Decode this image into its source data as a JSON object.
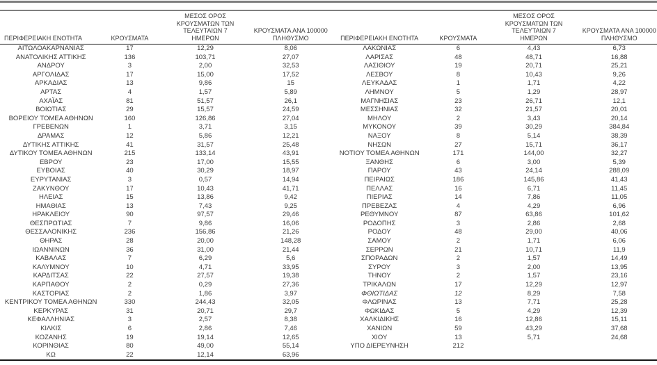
{
  "table": {
    "headers": {
      "region": "ΠΕΡΙΦΕΡΕΙΑΚΗ ΕΝΟΤΗΤΑ",
      "cases": "ΚΡΟΥΣΜΑΤΑ",
      "avg7": "ΜΕΣΟΣ ΟΡΟΣ ΚΡΟΥΣΜΑΤΩΝ ΤΩΝ ΤΕΛΕΥΤΑΙΩΝ 7 ΗΜΕΡΩΝ",
      "per100k": "ΚΡΟΥΣΜΑΤΑ ΑΝΑ 100000 ΠΛΗΘΥΣΜΟ"
    },
    "italic_regions": [
      "ΦΘΙΩΤΙΔΑΣ"
    ],
    "left_rows": [
      [
        "ΑΙΤΩΛΟΑΚΑΡΝΑΝΙΑΣ",
        "17",
        "12,29",
        "8,06"
      ],
      [
        "ΑΝΑΤΟΛΙΚΗΣ ΑΤΤΙΚΗΣ",
        "136",
        "103,71",
        "27,07"
      ],
      [
        "ΑΝΔΡΟΥ",
        "3",
        "2,00",
        "32,53"
      ],
      [
        "ΑΡΓΟΛΙΔΑΣ",
        "17",
        "15,00",
        "17,52"
      ],
      [
        "ΑΡΚΑΔΙΑΣ",
        "13",
        "9,86",
        "15"
      ],
      [
        "ΑΡΤΑΣ",
        "4",
        "1,57",
        "5,89"
      ],
      [
        "ΑΧΑΪΑΣ",
        "81",
        "51,57",
        "26,1"
      ],
      [
        "ΒΟΙΩΤΙΑΣ",
        "29",
        "15,57",
        "24,59"
      ],
      [
        "ΒΟΡΕΙΟΥ ΤΟΜΕΑ ΑΘΗΝΩΝ",
        "160",
        "126,86",
        "27,04"
      ],
      [
        "ΓΡΕΒΕΝΩΝ",
        "1",
        "3,71",
        "3,15"
      ],
      [
        "ΔΡΑΜΑΣ",
        "12",
        "5,86",
        "12,21"
      ],
      [
        "ΔΥΤΙΚΗΣ ΑΤΤΙΚΗΣ",
        "41",
        "31,57",
        "25,48"
      ],
      [
        "ΔΥΤΙΚΟΥ ΤΟΜΕΑ ΑΘΗΝΩΝ",
        "215",
        "133,14",
        "43,91"
      ],
      [
        "ΕΒΡΟΥ",
        "23",
        "17,00",
        "15,55"
      ],
      [
        "ΕΥΒΟΙΑΣ",
        "40",
        "30,29",
        "18,97"
      ],
      [
        "ΕΥΡΥΤΑΝΙΑΣ",
        "3",
        "0,57",
        "14,94"
      ],
      [
        "ΖΑΚΥΝΘΟΥ",
        "17",
        "10,43",
        "41,71"
      ],
      [
        "ΗΛΕΙΑΣ",
        "15",
        "13,86",
        "9,42"
      ],
      [
        "ΗΜΑΘΙΑΣ",
        "13",
        "7,43",
        "9,25"
      ],
      [
        "ΗΡΑΚΛΕΙΟΥ",
        "90",
        "97,57",
        "29,46"
      ],
      [
        "ΘΕΣΠΡΩΤΙΑΣ",
        "7",
        "9,86",
        "16,06"
      ],
      [
        "ΘΕΣΣΑΛΟΝΙΚΗΣ",
        "236",
        "156,86",
        "21,26"
      ],
      [
        "ΘΗΡΑΣ",
        "28",
        "20,00",
        "148,28"
      ],
      [
        "ΙΩΑΝΝΙΝΩΝ",
        "36",
        "31,00",
        "21,44"
      ],
      [
        "ΚΑΒΑΛΑΣ",
        "7",
        "6,29",
        "5,6"
      ],
      [
        "ΚΑΛΥΜΝΟΥ",
        "10",
        "4,71",
        "33,95"
      ],
      [
        "ΚΑΡΔΙΤΣΑΣ",
        "22",
        "27,57",
        "19,38"
      ],
      [
        "ΚΑΡΠΑΘΟΥ",
        "2",
        "0,29",
        "27,36"
      ],
      [
        "ΚΑΣΤΟΡΙΑΣ",
        "2",
        "1,86",
        "3,97"
      ],
      [
        "ΚΕΝΤΡΙΚΟΥ ΤΟΜΕΑ ΑΘΗΝΩΝ",
        "330",
        "244,43",
        "32,05"
      ],
      [
        "ΚΕΡΚΥΡΑΣ",
        "31",
        "20,71",
        "29,7"
      ],
      [
        "ΚΕΦΑΛΛΗΝΙΑΣ",
        "3",
        "2,57",
        "8,38"
      ],
      [
        "ΚΙΛΚΙΣ",
        "6",
        "2,86",
        "7,46"
      ],
      [
        "ΚΟΖΑΝΗΣ",
        "19",
        "19,14",
        "12,65"
      ],
      [
        "ΚΟΡΙΝΘΙΑΣ",
        "80",
        "49,00",
        "55,14"
      ],
      [
        "ΚΩ",
        "22",
        "12,14",
        "63,96"
      ]
    ],
    "right_rows": [
      [
        "ΛΑΚΩΝΙΑΣ",
        "6",
        "4,43",
        "6,73"
      ],
      [
        "ΛΑΡΙΣΑΣ",
        "48",
        "48,71",
        "16,88"
      ],
      [
        "ΛΑΣΙΘΙΟΥ",
        "19",
        "20,71",
        "25,21"
      ],
      [
        "ΛΕΣΒΟΥ",
        "8",
        "10,43",
        "9,26"
      ],
      [
        "ΛΕΥΚΑΔΑΣ",
        "1",
        "1,71",
        "4,22"
      ],
      [
        "ΛΗΜΝΟΥ",
        "5",
        "1,29",
        "28,97"
      ],
      [
        "ΜΑΓΝΗΣΙΑΣ",
        "23",
        "26,71",
        "12,1"
      ],
      [
        "ΜΕΣΣΗΝΙΑΣ",
        "32",
        "21,57",
        "20,01"
      ],
      [
        "ΜΗΛΟΥ",
        "2",
        "3,43",
        "20,14"
      ],
      [
        "ΜΥΚΟΝΟΥ",
        "39",
        "30,29",
        "384,84"
      ],
      [
        "ΝΑΞΟΥ",
        "8",
        "5,14",
        "38,39"
      ],
      [
        "ΝΗΣΩΝ",
        "27",
        "15,71",
        "36,17"
      ],
      [
        "ΝΟΤΙΟΥ ΤΟΜΕΑ ΑΘΗΝΩΝ",
        "171",
        "144,00",
        "32,27"
      ],
      [
        "ΞΑΝΘΗΣ",
        "6",
        "3,00",
        "5,39"
      ],
      [
        "ΠΑΡΟΥ",
        "43",
        "24,14",
        "288,09"
      ],
      [
        "ΠΕΙΡΑΙΩΣ",
        "186",
        "145,86",
        "41,43"
      ],
      [
        "ΠΕΛΛΑΣ",
        "16",
        "6,71",
        "11,45"
      ],
      [
        "ΠΙΕΡΙΑΣ",
        "14",
        "7,86",
        "11,05"
      ],
      [
        "ΠΡΕΒΕΖΑΣ",
        "4",
        "4,29",
        "6,96"
      ],
      [
        "ΡΕΘΥΜΝΟΥ",
        "87",
        "63,86",
        "101,62"
      ],
      [
        "ΡΟΔΟΠΗΣ",
        "3",
        "2,86",
        "2,68"
      ],
      [
        "ΡΟΔΟΥ",
        "48",
        "29,00",
        "40,06"
      ],
      [
        "ΣΑΜΟΥ",
        "2",
        "1,71",
        "6,06"
      ],
      [
        "ΣΕΡΡΩΝ",
        "21",
        "10,71",
        "11,9"
      ],
      [
        "ΣΠΟΡΑΔΩΝ",
        "2",
        "1,57",
        "14,49"
      ],
      [
        "ΣΥΡΟΥ",
        "3",
        "2,00",
        "13,95"
      ],
      [
        "ΤΗΝΟΥ",
        "2",
        "1,57",
        "23,16"
      ],
      [
        "ΤΡΙΚΑΛΩΝ",
        "17",
        "12,29",
        "12,97"
      ],
      [
        "ΦΘΙΩΤΙΔΑΣ",
        "12",
        "8,29",
        "7,58"
      ],
      [
        "ΦΛΩΡΙΝΑΣ",
        "13",
        "7,71",
        "25,28"
      ],
      [
        "ΦΩΚΙΔΑΣ",
        "5",
        "4,29",
        "12,39"
      ],
      [
        "ΧΑΛΚΙΔΙΚΗΣ",
        "16",
        "12,86",
        "15,11"
      ],
      [
        "ΧΑΝΙΩΝ",
        "59",
        "43,29",
        "37,68"
      ],
      [
        "ΧΙΟΥ",
        "13",
        "5,71",
        "24,68"
      ],
      [
        "ΥΠΟ ΔΙΕΡΕΥΝΗΣΗ",
        "212",
        "",
        ""
      ]
    ]
  },
  "colors": {
    "text": "#3a3a3a",
    "top_rule_gray": "#7f7f7f",
    "divider_black": "#161616",
    "background": "#ffffff"
  }
}
